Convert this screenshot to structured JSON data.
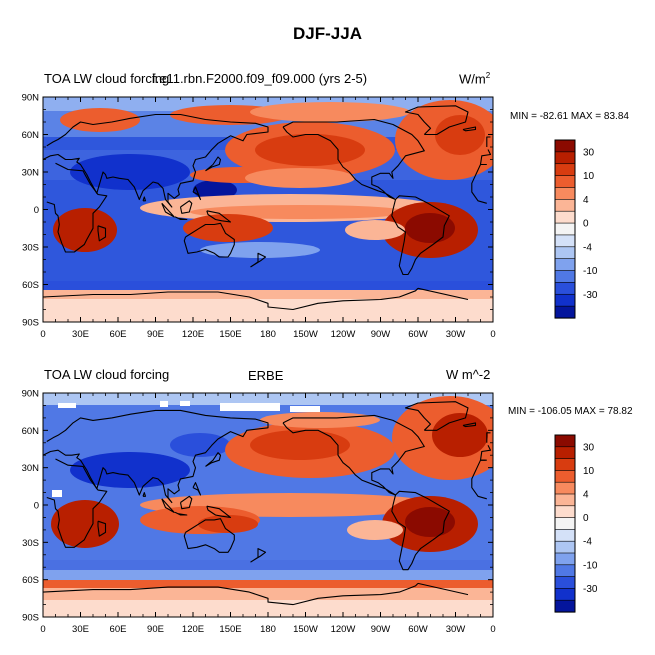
{
  "figure": {
    "title": "DJF-JJA"
  },
  "panels": [
    {
      "left_label": "TOA LW cloud forcing",
      "center_label": "f.e11.rbn.F2000.f09_f09.000 (yrs 2-5)",
      "units_base": "W/m",
      "units_sup": "2",
      "minmax": "MIN = -82.61 MAX =  83.84"
    },
    {
      "left_label": "TOA LW cloud forcing",
      "center_label": "ERBE",
      "units_base": "W m^-2",
      "units_sup": "",
      "minmax": "MIN = -106.05 MAX =  78.82"
    }
  ],
  "axes": {
    "lat_ticks": [
      "90N",
      "60N",
      "30N",
      "0",
      "30S",
      "60S",
      "90S"
    ],
    "lon_ticks": [
      "0",
      "30E",
      "60E",
      "90E",
      "120E",
      "150E",
      "180",
      "150W",
      "120W",
      "90W",
      "60W",
      "30W",
      "0"
    ]
  },
  "colorbar": {
    "labels": [
      "30",
      "10",
      "4",
      "0",
      "-4",
      "-10",
      "-30"
    ],
    "colors": [
      "#8b0a00",
      "#b81f00",
      "#d83c10",
      "#ec5d2e",
      "#f78a5e",
      "#fbb596",
      "#fddccd",
      "#f4f4f4",
      "#d4e1f8",
      "#adc6f3",
      "#7fa2ee",
      "#5078e5",
      "#2a4fdb",
      "#1131cc",
      "#04159c"
    ]
  }
}
